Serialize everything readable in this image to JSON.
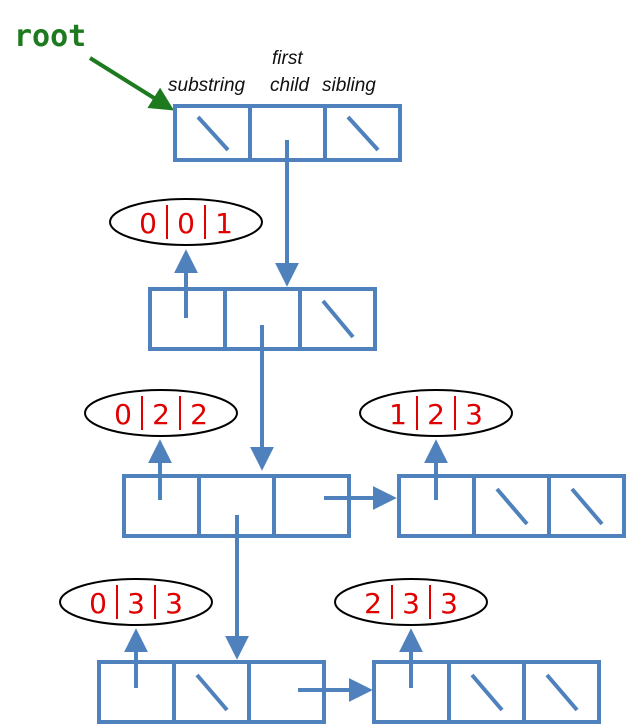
{
  "colors": {
    "node": "#4f81bd",
    "root": "#1e7a1e",
    "text": "#e00000",
    "outline": "#000000"
  },
  "root_label": "root",
  "header": {
    "substring": "substring",
    "first": "first",
    "child": "child",
    "sibling": "sibling"
  },
  "nodes": [
    {
      "id": "n1",
      "slot1": "null",
      "slot2": "pointer",
      "slot3": "null"
    },
    {
      "id": "n2",
      "slot1": "pointer",
      "slot2": "pointer",
      "slot3": "null"
    },
    {
      "id": "n3",
      "slot1": "pointer",
      "slot2": "pointer",
      "slot3": "pointer"
    },
    {
      "id": "n4",
      "slot1": "pointer",
      "slot2": "null",
      "slot3": "null"
    },
    {
      "id": "n5",
      "slot1": "pointer",
      "slot2": "null",
      "slot3": "pointer"
    },
    {
      "id": "n6",
      "slot1": "pointer",
      "slot2": "null",
      "slot3": "null"
    }
  ],
  "substrings": [
    {
      "node": "n2",
      "a": "0",
      "b": "0",
      "c": "1"
    },
    {
      "node": "n3",
      "a": "0",
      "b": "2",
      "c": "2"
    },
    {
      "node": "n4",
      "a": "1",
      "b": "2",
      "c": "3"
    },
    {
      "node": "n5",
      "a": "0",
      "b": "3",
      "c": "3"
    },
    {
      "node": "n6",
      "a": "2",
      "b": "3",
      "c": "3"
    }
  ]
}
